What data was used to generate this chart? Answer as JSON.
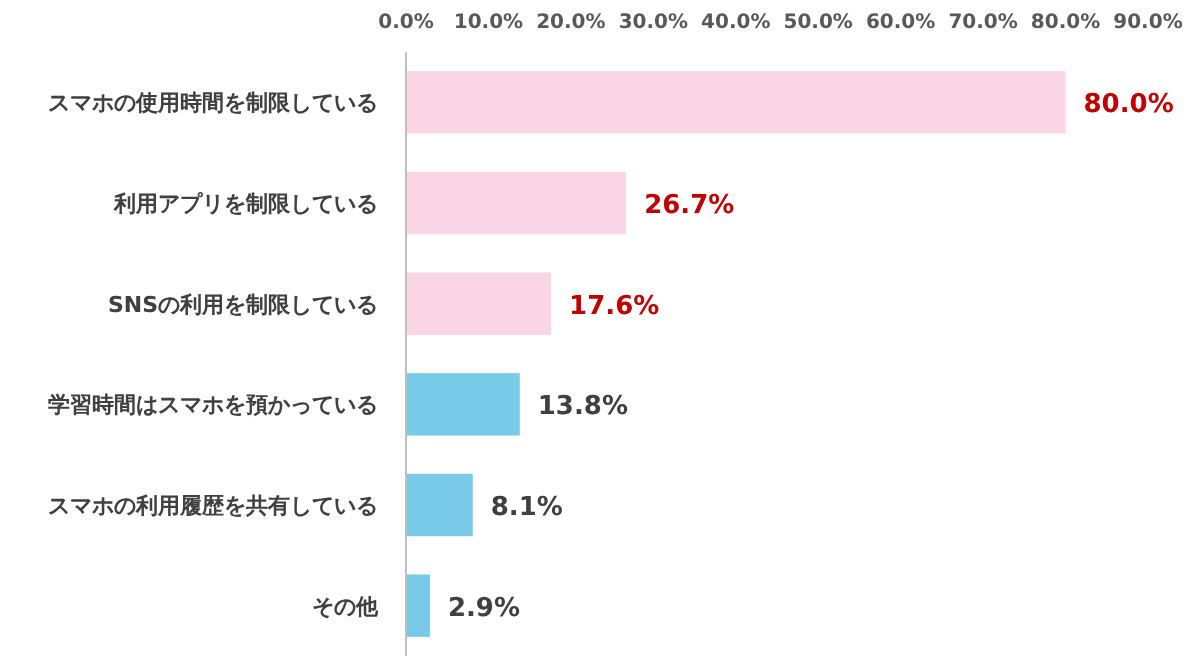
{
  "chart_data": {
    "type": "bar",
    "orientation": "horizontal",
    "categories": [
      "スマホの使用時間を制限している",
      "利用アプリを制限している",
      "SNSの利用を制限している",
      "学習時間はスマホを預かっている",
      "スマホの利用履歴を共有している",
      "その他"
    ],
    "values": [
      80.0,
      26.7,
      17.6,
      13.8,
      8.1,
      2.9
    ],
    "value_labels": [
      "80.0%",
      "26.7%",
      "17.6%",
      "13.8%",
      "8.1%",
      "2.9%"
    ],
    "colors": [
      "#f9d5e6",
      "#f9d5e6",
      "#f9d5e6",
      "#79c9e9",
      "#79c9e9",
      "#79c9e9"
    ],
    "xlim": [
      0,
      90
    ],
    "xticks": [
      {
        "value": 0,
        "label": "0.0%"
      },
      {
        "value": 10,
        "label": "10.0%"
      },
      {
        "value": 20,
        "label": "20.0%"
      },
      {
        "value": 30,
        "label": "30.0%"
      },
      {
        "value": 40,
        "label": "40.0%"
      },
      {
        "value": 50,
        "label": "50.0%"
      },
      {
        "value": 60,
        "label": "60.0%"
      },
      {
        "value": 70,
        "label": "70.0%"
      },
      {
        "value": 80,
        "label": "80.0%"
      },
      {
        "value": 90,
        "label": "90.0%"
      }
    ],
    "grid": false
  }
}
